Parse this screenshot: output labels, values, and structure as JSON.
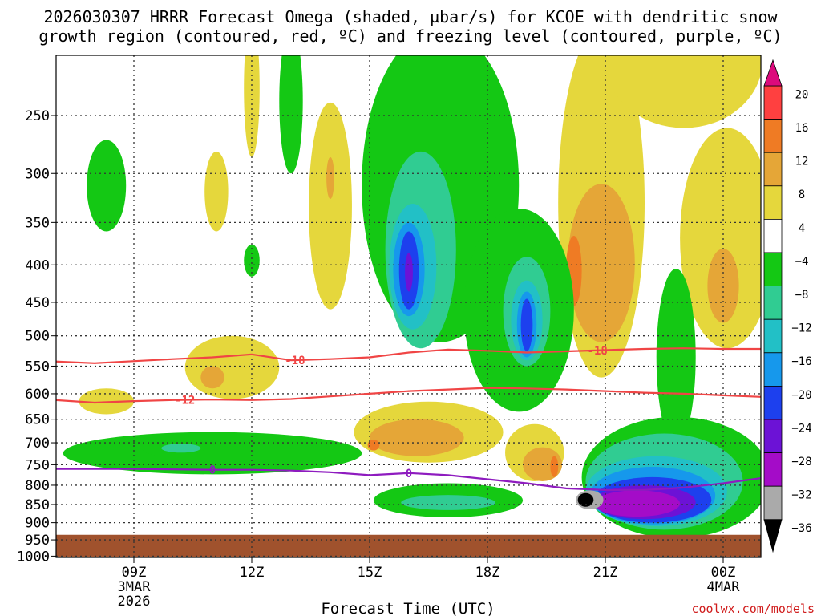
{
  "title_line1": "2026030307 HRRR Forecast Omega (shaded, µbar/s) for KCOE with dendritic snow",
  "title_line2": "growth region (contoured, red, ºC) and freezing level (contoured, purple, ºC)",
  "credit": "coolwx.com/models",
  "chart_data": {
    "type": "heatmap",
    "xlabel": "Forecast Time (UTC)",
    "ylabel": "",
    "x_range_hours": [
      7,
      25
    ],
    "y_range_hpa": [
      200,
      1050
    ],
    "y_scale": "log-pressure",
    "grid": true,
    "x_ticks": [
      {
        "hour": 9,
        "label": "09Z",
        "sub1": "3MAR",
        "sub2": "2026"
      },
      {
        "hour": 12,
        "label": "12Z",
        "sub1": "",
        "sub2": ""
      },
      {
        "hour": 15,
        "label": "15Z",
        "sub1": "",
        "sub2": ""
      },
      {
        "hour": 18,
        "label": "18Z",
        "sub1": "",
        "sub2": ""
      },
      {
        "hour": 21,
        "label": "21Z",
        "sub1": "",
        "sub2": ""
      },
      {
        "hour": 24,
        "label": "00Z",
        "sub1": "4MAR",
        "sub2": ""
      }
    ],
    "y_ticks": [
      250,
      300,
      350,
      400,
      450,
      500,
      550,
      600,
      650,
      700,
      750,
      800,
      850,
      900,
      950,
      1000
    ],
    "ground_level_hpa": 935,
    "colorbar": {
      "labels": [
        "20",
        "16",
        "12",
        "8",
        "4",
        "−4",
        "−8",
        "−12",
        "−16",
        "−20",
        "−24",
        "−28",
        "−32",
        "−36"
      ],
      "colors": [
        "#ff4040",
        "#ef7b24",
        "#e5a637",
        "#e5d73c",
        "#ffffff",
        "#14c814",
        "#30cc92",
        "#22c0c6",
        "#1698ec",
        "#1d40ee",
        "#6c12d6",
        "#a40cc8",
        "#aaaaaa"
      ],
      "top_color": "#dc0a7c",
      "bottom_color": "#000000"
    },
    "contours": [
      {
        "name": "dgz-upper",
        "value": "-18",
        "color": "#f04545",
        "points": [
          [
            7,
            542
          ],
          [
            8,
            545
          ],
          [
            10,
            538
          ],
          [
            11,
            535
          ],
          [
            12,
            530
          ],
          [
            13,
            540
          ],
          [
            14,
            538
          ],
          [
            15,
            535
          ],
          [
            16,
            527
          ],
          [
            17,
            522
          ],
          [
            18,
            524
          ],
          [
            19,
            527
          ],
          [
            20,
            525
          ],
          [
            21,
            523
          ],
          [
            22,
            521
          ],
          [
            23,
            520
          ],
          [
            24,
            521
          ],
          [
            25,
            521
          ]
        ],
        "label_hour": 13.1,
        "label2_hour": 20.8
      },
      {
        "name": "dgz-lower",
        "value": "-12",
        "color": "#f04545",
        "points": [
          [
            7,
            612
          ],
          [
            8,
            617
          ],
          [
            9,
            614
          ],
          [
            10,
            612
          ],
          [
            11,
            611
          ],
          [
            12,
            612
          ],
          [
            13,
            610
          ],
          [
            14,
            605
          ],
          [
            15,
            600
          ],
          [
            16,
            595
          ],
          [
            17,
            592
          ],
          [
            18,
            589
          ],
          [
            19,
            590
          ],
          [
            20,
            592
          ],
          [
            21,
            595
          ],
          [
            22,
            598
          ],
          [
            23,
            600
          ],
          [
            24,
            603
          ],
          [
            25,
            606
          ]
        ],
        "label_hour": 10.3
      },
      {
        "name": "freezing-level",
        "value": "0",
        "color": "#8e1bbf",
        "points": [
          [
            7,
            760
          ],
          [
            8,
            760
          ],
          [
            9,
            760
          ],
          [
            10,
            761
          ],
          [
            11,
            762
          ],
          [
            12,
            762
          ],
          [
            13,
            764
          ],
          [
            14,
            768
          ],
          [
            15,
            775
          ],
          [
            16,
            770
          ],
          [
            17,
            775
          ],
          [
            18,
            785
          ],
          [
            19,
            795
          ],
          [
            20,
            808
          ],
          [
            21,
            812
          ],
          [
            22,
            812
          ],
          [
            23,
            806
          ],
          [
            24,
            795
          ],
          [
            25,
            782
          ]
        ],
        "label_hour": 11.0,
        "label2_hour": 16.0
      }
    ],
    "shaded_regions": [
      {
        "level": "+4",
        "color": "#e5d73c",
        "hour": 12.0,
        "p": 235,
        "rh": 0.2,
        "rp": 50
      },
      {
        "level": "+4",
        "color": "#e5d73c",
        "hour": 11.1,
        "p": 320,
        "rh": 0.3,
        "rp": 40
      },
      {
        "level": "+4",
        "color": "#e5d73c",
        "hour": 14.0,
        "p": 350,
        "rh": 0.55,
        "rp": 110
      },
      {
        "level": "+8",
        "color": "#e5a637",
        "hour": 14.0,
        "p": 305,
        "rh": 0.1,
        "rp": 20
      },
      {
        "level": "+4",
        "color": "#e5d73c",
        "hour": 11.5,
        "p": 555,
        "rh": 1.2,
        "rp": 55
      },
      {
        "level": "+8",
        "color": "#e5a637",
        "hour": 11.0,
        "p": 570,
        "rh": 0.3,
        "rp": 20
      },
      {
        "level": "+4",
        "color": "#e5d73c",
        "hour": 8.3,
        "p": 615,
        "rh": 0.7,
        "rp": 25
      },
      {
        "level": "+4",
        "color": "#e5d73c",
        "hour": 16.5,
        "p": 680,
        "rh": 1.9,
        "rp": 65
      },
      {
        "level": "+8",
        "color": "#e5a637",
        "hour": 16.2,
        "p": 690,
        "rh": 1.2,
        "rp": 40
      },
      {
        "level": "+12",
        "color": "#ef7b24",
        "hour": 15.1,
        "p": 705,
        "rh": 0.15,
        "rp": 12
      },
      {
        "level": "+4",
        "color": "#e5d73c",
        "hour": 19.2,
        "p": 725,
        "rh": 0.75,
        "rp": 65
      },
      {
        "level": "+8",
        "color": "#e5a637",
        "hour": 19.4,
        "p": 750,
        "rh": 0.5,
        "rp": 40
      },
      {
        "level": "+12",
        "color": "#ef7b24",
        "hour": 19.7,
        "p": 755,
        "rh": 0.1,
        "rp": 25
      },
      {
        "level": "+4",
        "color": "#e5d73c",
        "hour": 20.9,
        "p": 380,
        "rh": 1.1,
        "rp": 190
      },
      {
        "level": "+8",
        "color": "#e5a637",
        "hour": 20.9,
        "p": 410,
        "rh": 0.85,
        "rp": 100
      },
      {
        "level": "+12",
        "color": "#ef7b24",
        "hour": 20.2,
        "p": 410,
        "rh": 0.2,
        "rp": 45
      },
      {
        "level": "+4",
        "color": "#e5d73c",
        "hour": 24.1,
        "p": 390,
        "rh": 1.2,
        "rp": 130
      },
      {
        "level": "+8",
        "color": "#e5a637",
        "hour": 24.0,
        "p": 430,
        "rh": 0.4,
        "rp": 50
      },
      {
        "level": "+4",
        "color": "#e5d73c",
        "hour": 23.0,
        "p": 215,
        "rh": 2.0,
        "rp": 45
      },
      {
        "level": "-4",
        "color": "#14c814",
        "hour": 8.3,
        "p": 315,
        "rh": 0.5,
        "rp": 45
      },
      {
        "level": "-4",
        "color": "#14c814",
        "hour": 12.0,
        "p": 395,
        "rh": 0.2,
        "rp": 20
      },
      {
        "level": "-4",
        "color": "#14c814",
        "hour": 13.0,
        "p": 245,
        "rh": 0.3,
        "rp": 55
      },
      {
        "level": "-4",
        "color": "#14c814",
        "hour": 11.0,
        "p": 725,
        "rh": 3.8,
        "rp": 48
      },
      {
        "level": "-4",
        "color": "#14c814",
        "hour": 10.0,
        "p": 712,
        "rh": 0.8,
        "rp": 20
      },
      {
        "level": "-8",
        "color": "#30cc92",
        "hour": 10.2,
        "p": 712,
        "rh": 0.5,
        "rp": 10
      },
      {
        "level": "-4",
        "color": "#14c814",
        "hour": 16.8,
        "p": 350,
        "rh": 2.0,
        "rp": 160
      },
      {
        "level": "-4",
        "color": "#14c814",
        "hour": 18.8,
        "p": 485,
        "rh": 1.4,
        "rp": 150
      },
      {
        "level": "-8",
        "color": "#30cc92",
        "hour": 16.3,
        "p": 400,
        "rh": 0.9,
        "rp": 120
      },
      {
        "level": "-12",
        "color": "#22c0c6",
        "hour": 16.1,
        "p": 410,
        "rh": 0.6,
        "rp": 80
      },
      {
        "level": "-16",
        "color": "#1698ec",
        "hour": 16.0,
        "p": 410,
        "rh": 0.4,
        "rp": 60
      },
      {
        "level": "-20",
        "color": "#1d40ee",
        "hour": 16.0,
        "p": 410,
        "rh": 0.25,
        "rp": 50
      },
      {
        "level": "-24",
        "color": "#6c12d6",
        "hour": 16.0,
        "p": 410,
        "rh": 0.1,
        "rp": 25
      },
      {
        "level": "-8",
        "color": "#30cc92",
        "hour": 19.0,
        "p": 470,
        "rh": 0.6,
        "rp": 80
      },
      {
        "level": "-12",
        "color": "#22c0c6",
        "hour": 19.0,
        "p": 480,
        "rh": 0.4,
        "rp": 60
      },
      {
        "level": "-16",
        "color": "#1698ec",
        "hour": 19.0,
        "p": 485,
        "rh": 0.25,
        "rp": 50
      },
      {
        "level": "-20",
        "color": "#1d40ee",
        "hour": 19.0,
        "p": 485,
        "rh": 0.15,
        "rp": 40
      },
      {
        "level": "-4",
        "color": "#14c814",
        "hour": 17.0,
        "p": 840,
        "rh": 1.9,
        "rp": 45
      },
      {
        "level": "-8",
        "color": "#30cc92",
        "hour": 17.0,
        "p": 845,
        "rh": 1.2,
        "rp": 20
      },
      {
        "level": "-4",
        "color": "#14c814",
        "hour": 22.8,
        "p": 795,
        "rh": 2.4,
        "rp": 150
      },
      {
        "level": "-4",
        "color": "#14c814",
        "hour": 22.8,
        "p": 555,
        "rh": 0.5,
        "rp": 150
      },
      {
        "level": "-8",
        "color": "#30cc92",
        "hour": 22.5,
        "p": 800,
        "rh": 2.0,
        "rp": 120
      },
      {
        "level": "-12",
        "color": "#22c0c6",
        "hour": 22.3,
        "p": 820,
        "rh": 1.8,
        "rp": 90
      },
      {
        "level": "-16",
        "color": "#1698ec",
        "hour": 22.2,
        "p": 830,
        "rh": 1.6,
        "rp": 75
      },
      {
        "level": "-20",
        "color": "#1d40ee",
        "hour": 22.2,
        "p": 840,
        "rh": 1.5,
        "rp": 60
      },
      {
        "level": "-24",
        "color": "#6c12d6",
        "hour": 22.0,
        "p": 845,
        "rh": 1.3,
        "rp": 45
      },
      {
        "level": "-28",
        "color": "#a40cc8",
        "hour": 21.8,
        "p": 848,
        "rh": 1.1,
        "rp": 35
      },
      {
        "level": "-32",
        "color": "#aaaaaa",
        "hour": 20.6,
        "p": 838,
        "rh": 0.35,
        "rp": 25
      },
      {
        "level": "-36",
        "color": "#000000",
        "hour": 20.5,
        "p": 838,
        "rh": 0.2,
        "rp": 18
      }
    ]
  }
}
